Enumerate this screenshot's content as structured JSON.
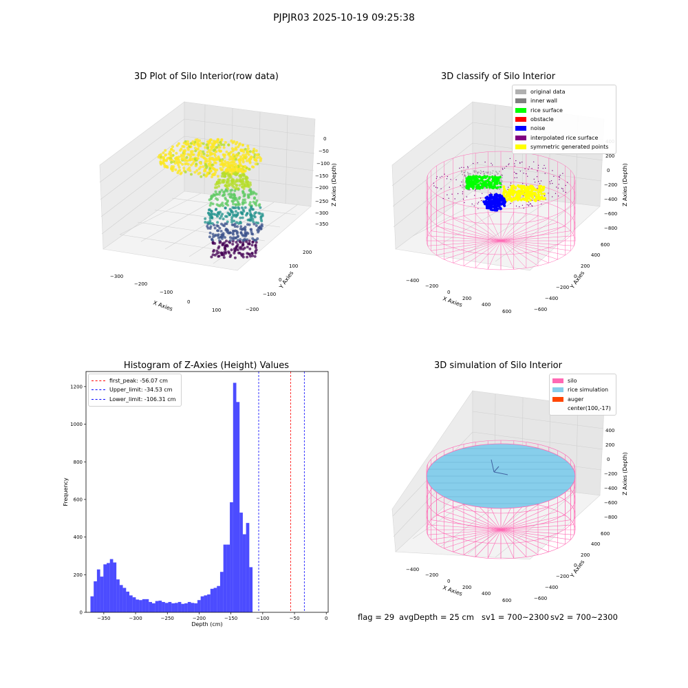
{
  "suptitle": "PJPJR03 2025-10-19 09:25:38",
  "status": {
    "flag": "flag = 29",
    "avg_depth": "avgDepth = 25 cm",
    "sv1": "sv1 = 700~2300",
    "sv2": "sv2 = 700~2300"
  },
  "chart_data": [
    {
      "type": "scatter",
      "subtype": "3d-scatter",
      "title": "3D Plot of Silo Interior(row data)",
      "xlabel": "X Axies",
      "ylabel": "Y Axies",
      "zlabel": "Z Axies (Depth)",
      "x_ticks": [
        "−300",
        "−200",
        "−100",
        "0",
        "100"
      ],
      "y_ticks": [
        "−200",
        "−100",
        "0",
        "100",
        "200"
      ],
      "z_ticks": [
        "−350",
        "−300",
        "−250",
        "−200",
        "−150",
        "−100",
        "−50",
        "0"
      ],
      "xlim": [
        -330,
        160
      ],
      "ylim": [
        -230,
        260
      ],
      "zlim": [
        -380,
        10
      ],
      "colormap": "viridis",
      "colors": {
        "high": "#fde725",
        "mid": "#21918c",
        "low": "#440154"
      },
      "grid": true
    },
    {
      "type": "scatter",
      "subtype": "3d-classification",
      "title": "3D classify of Silo Interior",
      "xlabel": "X Axies",
      "ylabel": "Y Axies",
      "zlabel": "Z Axies (Depth)",
      "x_ticks": [
        "−400",
        "−200",
        "0",
        "200",
        "400",
        "600"
      ],
      "y_ticks": [
        "−600",
        "−400",
        "−200",
        "0",
        "200",
        "400",
        "600"
      ],
      "z_ticks": [
        "−800",
        "−600",
        "−400",
        "−200",
        "0",
        "200",
        "400"
      ],
      "legend_position": "top-right",
      "legend": [
        {
          "label": "original data",
          "color": "#b0b0b0"
        },
        {
          "label": "inner wall",
          "color": "#808080"
        },
        {
          "label": "rice surface",
          "color": "#00ff00"
        },
        {
          "label": "obstacle",
          "color": "#ff0000"
        },
        {
          "label": "noise",
          "color": "#0000ff"
        },
        {
          "label": "interpolated rice surface",
          "color": "#800080"
        },
        {
          "label": "symmetric generated points",
          "color": "#ffff00"
        }
      ],
      "silo_wire_color": "#ff69b4",
      "grid": true
    },
    {
      "type": "bar",
      "subtype": "histogram",
      "title": "Histogram of Z-Axies (Height) Values",
      "xlabel": "Depth (cm)",
      "ylabel": "Frequency",
      "x_ticks": [
        -350,
        -300,
        -250,
        -200,
        -150,
        -100,
        -50,
        0
      ],
      "y_ticks": [
        0,
        200,
        400,
        600,
        800,
        1000,
        1200
      ],
      "xlim": [
        -378,
        3
      ],
      "ylim": [
        0,
        1280
      ],
      "bin_start": -371,
      "bin_width": 5.1,
      "values": [
        85,
        165,
        228,
        190,
        255,
        262,
        283,
        265,
        175,
        145,
        130,
        110,
        90,
        80,
        68,
        65,
        70,
        70,
        55,
        48,
        60,
        62,
        55,
        50,
        55,
        48,
        50,
        55,
        45,
        48,
        55,
        50,
        48,
        65,
        85,
        90,
        95,
        125,
        130,
        140,
        215,
        360,
        360,
        585,
        1220,
        1118,
        530,
        415,
        475,
        240
      ],
      "bar_color": "#0000ff",
      "bar_alpha": 0.7,
      "lines": [
        {
          "label": "first_peak: -56.07 cm",
          "x": -56.07,
          "color": "#ff0000"
        },
        {
          "label": "Upper_limit: -34.53 cm",
          "x": -34.53,
          "color": "#0000ff"
        },
        {
          "label": "Lower_limit: -106.31 cm",
          "x": -106.31,
          "color": "#0000ff"
        }
      ],
      "legend_position": "top-left",
      "grid": false
    },
    {
      "type": "scatter",
      "subtype": "3d-simulation",
      "title": "3D simulation of Silo Interior",
      "xlabel": "X Axies",
      "ylabel": "Y Axies",
      "zlabel": "Z Axies (Depth)",
      "x_ticks": [
        "−400",
        "−200",
        "0",
        "200",
        "400",
        "600"
      ],
      "y_ticks": [
        "−600",
        "−400",
        "−200",
        "0",
        "200",
        "400",
        "600"
      ],
      "z_ticks": [
        "−800",
        "−600",
        "−400",
        "−200",
        "0",
        "200",
        "400"
      ],
      "legend_position": "top-right",
      "legend": [
        {
          "label": "silo",
          "color": "#ff69b4"
        },
        {
          "label": "rice simulation",
          "color": "#87ceeb"
        },
        {
          "label": "auger",
          "color": "#ff4500"
        },
        {
          "label": "center(100,-17)",
          "color": ""
        }
      ],
      "grid": true
    }
  ]
}
